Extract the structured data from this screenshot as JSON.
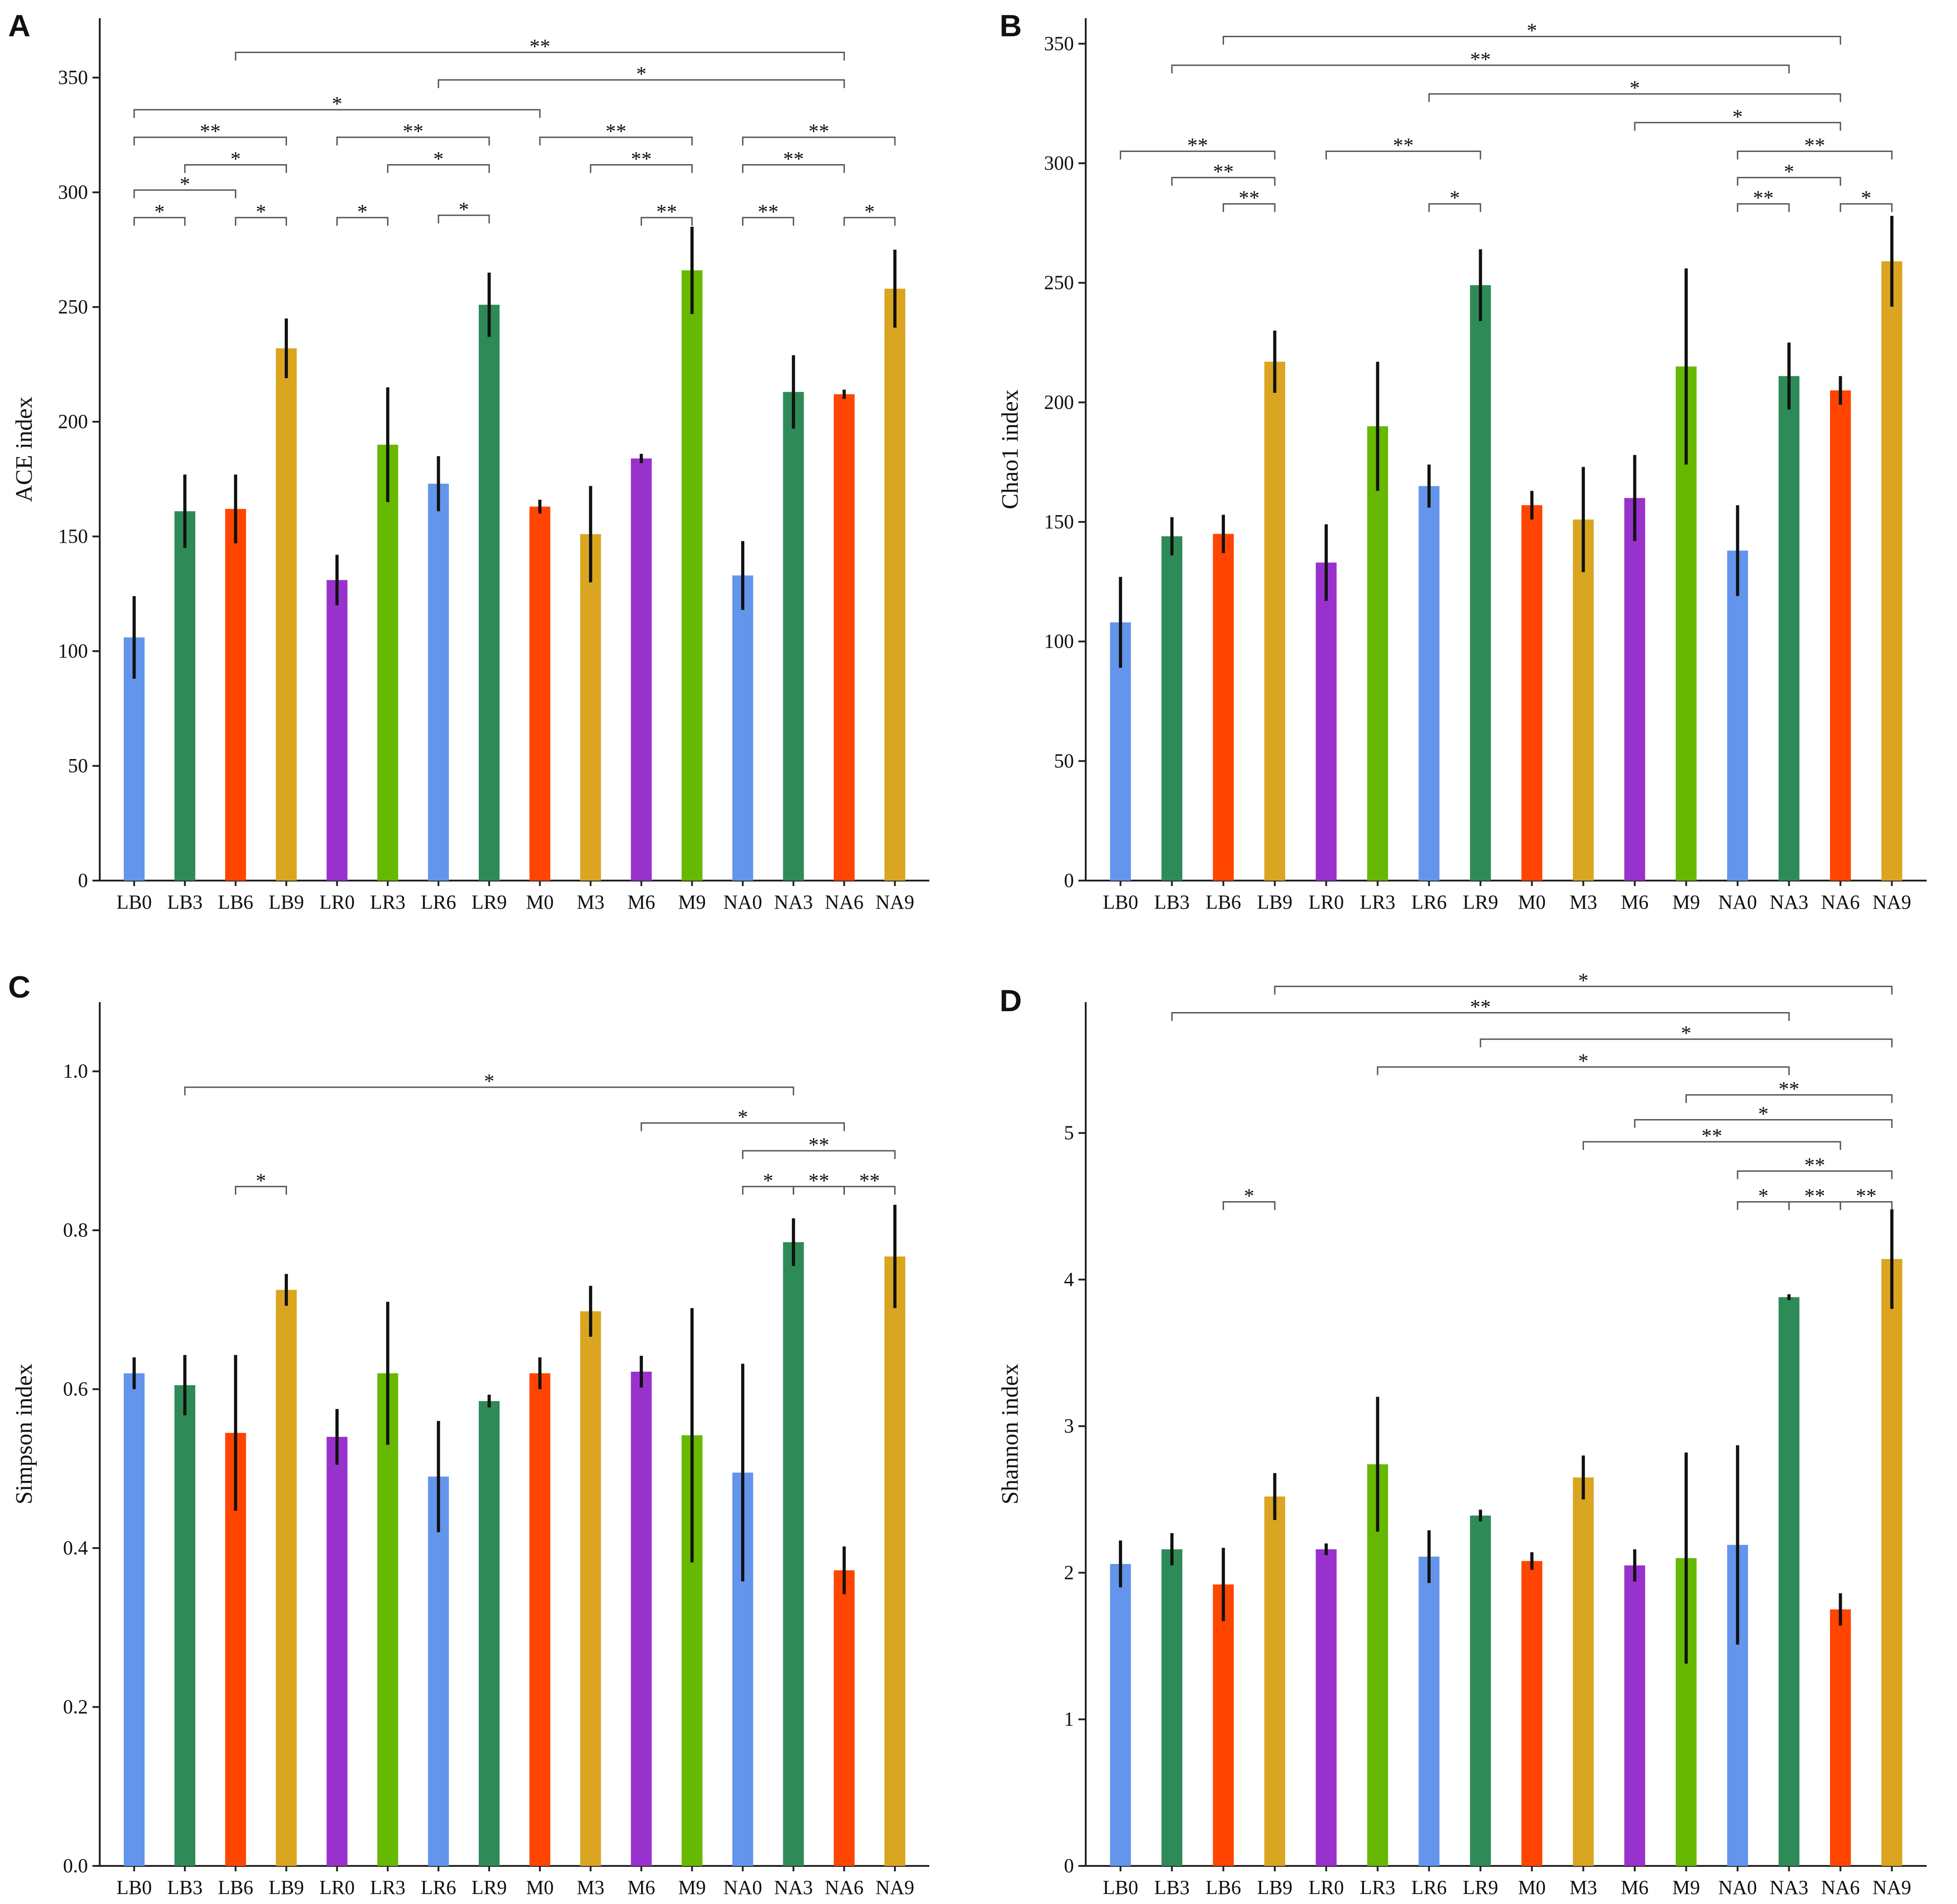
{
  "figure": {
    "background": "#ffffff",
    "axis_color": "#222222",
    "bracket_color": "#555555",
    "errorbar_color": "#111111"
  },
  "colors": {
    "LB0": "#6495ED",
    "LB3": "#2E8B57",
    "LB6": "#FF4500",
    "LB9": "#DAA520",
    "LR0": "#9932CC",
    "LR3": "#66B800",
    "LR6": "#6495ED",
    "LR9": "#2E8B57",
    "M0": "#FF4500",
    "M3": "#DAA520",
    "M6": "#9932CC",
    "M9": "#66B800",
    "NA0": "#6495ED",
    "NA3": "#2E8B57",
    "NA6": "#FF4500",
    "NA9": "#DAA520"
  },
  "chart_data": [
    {
      "panel": "A",
      "type": "bar",
      "ylabel": "ACE index",
      "ylim": [
        0,
        370
      ],
      "yticks": [
        0,
        50,
        100,
        150,
        200,
        250,
        300,
        350
      ],
      "categories": [
        "LB0",
        "LB3",
        "LB6",
        "LB9",
        "LR0",
        "LR3",
        "LR6",
        "LR9",
        "M0",
        "M3",
        "M6",
        "M9",
        "NA0",
        "NA3",
        "NA6",
        "NA9"
      ],
      "values": [
        106,
        161,
        162,
        232,
        131,
        190,
        173,
        251,
        163,
        151,
        184,
        266,
        133,
        213,
        212,
        258
      ],
      "errors": [
        18,
        16,
        15,
        13,
        11,
        25,
        12,
        14,
        3,
        21,
        2,
        19,
        15,
        16,
        2,
        17
      ],
      "brackets": [
        {
          "from": "LB0",
          "to": "LB3",
          "y": 289,
          "label": "*"
        },
        {
          "from": "LB6",
          "to": "LB9",
          "y": 289,
          "label": "*"
        },
        {
          "from": "LR0",
          "to": "LR3",
          "y": 289,
          "label": "*"
        },
        {
          "from": "LR6",
          "to": "LR9",
          "y": 290,
          "label": "*"
        },
        {
          "from": "M6",
          "to": "M9",
          "y": 289,
          "label": "**"
        },
        {
          "from": "NA0",
          "to": "NA3",
          "y": 289,
          "label": "**"
        },
        {
          "from": "NA6",
          "to": "NA9",
          "y": 289,
          "label": "*"
        },
        {
          "from": "LB0",
          "to": "LB6",
          "y": 301,
          "label": "*"
        },
        {
          "from": "LB3",
          "to": "LB9",
          "y": 312,
          "label": "*"
        },
        {
          "from": "LR3",
          "to": "LR9",
          "y": 312,
          "label": "*"
        },
        {
          "from": "M3",
          "to": "M9",
          "y": 312,
          "label": "**"
        },
        {
          "from": "NA0",
          "to": "NA6",
          "y": 312,
          "label": "**"
        },
        {
          "from": "LB0",
          "to": "LB9",
          "y": 324,
          "label": "**"
        },
        {
          "from": "LR0",
          "to": "LR9",
          "y": 324,
          "label": "**"
        },
        {
          "from": "M0",
          "to": "M9",
          "y": 324,
          "label": "**"
        },
        {
          "from": "NA0",
          "to": "NA9",
          "y": 324,
          "label": "**"
        },
        {
          "from": "LB0",
          "to": "M0",
          "y": 336,
          "label": "*"
        },
        {
          "from": "LR6",
          "to": "NA6",
          "y": 349,
          "label": "*"
        },
        {
          "from": "LB6",
          "to": "NA6",
          "y": 361,
          "label": "**"
        }
      ]
    },
    {
      "panel": "B",
      "type": "bar",
      "ylabel": "Chao1 index",
      "ylim": [
        0,
        355
      ],
      "yticks": [
        0,
        50,
        100,
        150,
        200,
        250,
        300,
        350
      ],
      "categories": [
        "LB0",
        "LB3",
        "LB6",
        "LB9",
        "LR0",
        "LR3",
        "LR6",
        "LR9",
        "M0",
        "M3",
        "M6",
        "M9",
        "NA0",
        "NA3",
        "NA6",
        "NA9"
      ],
      "values": [
        108,
        144,
        145,
        217,
        133,
        190,
        165,
        249,
        157,
        151,
        160,
        215,
        138,
        211,
        205,
        259
      ],
      "errors": [
        19,
        8,
        8,
        13,
        16,
        27,
        9,
        15,
        6,
        22,
        18,
        41,
        19,
        14,
        6,
        19
      ],
      "brackets": [
        {
          "from": "LB6",
          "to": "LB9",
          "y": 283,
          "label": "**"
        },
        {
          "from": "LR6",
          "to": "LR9",
          "y": 283,
          "label": "*"
        },
        {
          "from": "NA0",
          "to": "NA3",
          "y": 283,
          "label": "**"
        },
        {
          "from": "NA6",
          "to": "NA9",
          "y": 283,
          "label": "*"
        },
        {
          "from": "LB3",
          "to": "LB9",
          "y": 294,
          "label": "**"
        },
        {
          "from": "NA0",
          "to": "NA6",
          "y": 294,
          "label": "*"
        },
        {
          "from": "LB0",
          "to": "LB9",
          "y": 305,
          "label": "**"
        },
        {
          "from": "LR0",
          "to": "LR9",
          "y": 305,
          "label": "**"
        },
        {
          "from": "NA0",
          "to": "NA9",
          "y": 305,
          "label": "**"
        },
        {
          "from": "M6",
          "to": "NA6",
          "y": 317,
          "label": "*"
        },
        {
          "from": "LR6",
          "to": "NA6",
          "y": 329,
          "label": "*"
        },
        {
          "from": "LB3",
          "to": "NA3",
          "y": 341,
          "label": "**"
        },
        {
          "from": "LB6",
          "to": "NA6",
          "y": 353,
          "label": "*"
        }
      ]
    },
    {
      "panel": "C",
      "type": "bar",
      "ylabel": "Simpson index",
      "ylim": [
        0,
        1.07
      ],
      "yticks": [
        0.0,
        0.2,
        0.4,
        0.6,
        0.8,
        1.0
      ],
      "categories": [
        "LB0",
        "LB3",
        "LB6",
        "LB9",
        "LR0",
        "LR3",
        "LR6",
        "LR9",
        "M0",
        "M3",
        "M6",
        "M9",
        "NA0",
        "NA3",
        "NA6",
        "NA9"
      ],
      "values": [
        0.62,
        0.605,
        0.545,
        0.725,
        0.54,
        0.62,
        0.49,
        0.585,
        0.62,
        0.698,
        0.622,
        0.542,
        0.495,
        0.785,
        0.372,
        0.767
      ],
      "errors": [
        0.02,
        0.038,
        0.098,
        0.02,
        0.035,
        0.09,
        0.07,
        0.008,
        0.02,
        0.032,
        0.02,
        0.16,
        0.137,
        0.03,
        0.03,
        0.065
      ],
      "brackets": [
        {
          "from": "LB6",
          "to": "LB9",
          "y": 0.855,
          "label": "*"
        },
        {
          "from": "NA0",
          "to": "NA3",
          "y": 0.855,
          "label": "*"
        },
        {
          "from": "NA3",
          "to": "NA6",
          "y": 0.855,
          "label": "**"
        },
        {
          "from": "NA6",
          "to": "NA9",
          "y": 0.855,
          "label": "**"
        },
        {
          "from": "NA0",
          "to": "NA9",
          "y": 0.9,
          "label": "**"
        },
        {
          "from": "M6",
          "to": "NA6",
          "y": 0.935,
          "label": "*"
        },
        {
          "from": "LB3",
          "to": "NA3",
          "y": 0.98,
          "label": "*"
        }
      ]
    },
    {
      "panel": "D",
      "type": "bar",
      "ylabel": "Shannon index",
      "ylim": [
        0,
        5.8
      ],
      "yticks": [
        0,
        1,
        2,
        3,
        4,
        5
      ],
      "categories": [
        "LB0",
        "LB3",
        "LB6",
        "LB9",
        "LR0",
        "LR3",
        "LR6",
        "LR9",
        "M0",
        "M3",
        "M6",
        "M9",
        "NA0",
        "NA3",
        "NA6",
        "NA9"
      ],
      "values": [
        2.06,
        2.16,
        1.92,
        2.52,
        2.16,
        2.74,
        2.11,
        2.39,
        2.08,
        2.65,
        2.05,
        2.1,
        2.19,
        3.88,
        1.75,
        4.14
      ],
      "errors": [
        0.16,
        0.11,
        0.25,
        0.16,
        0.04,
        0.46,
        0.18,
        0.04,
        0.06,
        0.15,
        0.11,
        0.72,
        0.68,
        0.02,
        0.11,
        0.34
      ],
      "brackets": [
        {
          "from": "LB6",
          "to": "LB9",
          "y": 4.53,
          "label": "*"
        },
        {
          "from": "NA0",
          "to": "NA3",
          "y": 4.53,
          "label": "*"
        },
        {
          "from": "NA3",
          "to": "NA6",
          "y": 4.53,
          "label": "**"
        },
        {
          "from": "NA6",
          "to": "NA9",
          "y": 4.53,
          "label": "**"
        },
        {
          "from": "NA0",
          "to": "NA9",
          "y": 4.74,
          "label": "**"
        },
        {
          "from": "M3",
          "to": "NA6",
          "y": 4.94,
          "label": "**"
        },
        {
          "from": "M6",
          "to": "NA9",
          "y": 5.09,
          "label": "*"
        },
        {
          "from": "M9",
          "to": "NA9",
          "y": 5.26,
          "label": "**"
        },
        {
          "from": "LR3",
          "to": "NA3",
          "y": 5.45,
          "label": "*"
        },
        {
          "from": "LR9",
          "to": "NA9",
          "y": 5.64,
          "label": "*"
        },
        {
          "from": "LB3",
          "to": "NA3",
          "y": 5.82,
          "label": "**"
        },
        {
          "from": "LB9",
          "to": "NA9",
          "y": 6.0,
          "label": "*"
        }
      ]
    }
  ]
}
